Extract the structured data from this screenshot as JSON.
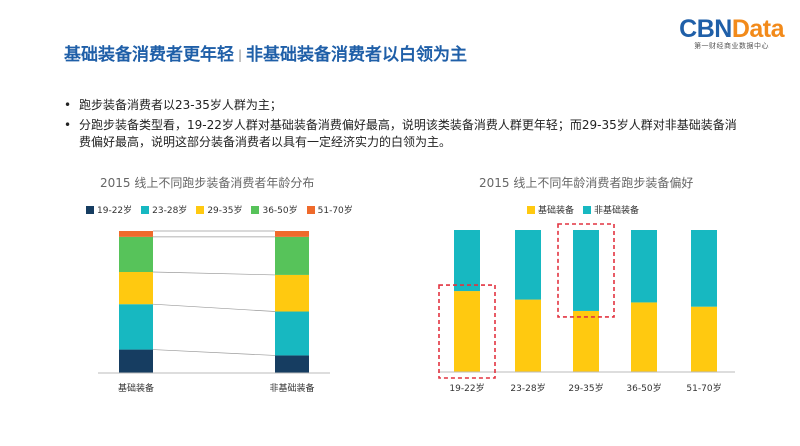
{
  "logo": {
    "main_blue": "CBN",
    "main_orange": "Data",
    "sub": "第一财经商业数据中心"
  },
  "title": {
    "part1": "基础装备消费者更年轻",
    "part2": "非基础装备消费者以白领为主"
  },
  "bullets": [
    "跑步装备消费者以23-35岁人群为主；",
    "分跑步装备类型看，19-22岁人群对基础装备消费偏好最高，说明该类装备消费人群更年轻；而29-35岁人群对非基础装备消费偏好最高，说明这部分装备消费者以具有一定经济实力的白领为主。"
  ],
  "bullet_glyph": "•",
  "colors": {
    "title": "#1f5fa8",
    "age_19_22": "#163d61",
    "age_23_28": "#17b8c1",
    "age_29_35": "#ffc910",
    "age_36_50": "#57c35a",
    "age_51_70": "#ef6a2b",
    "basic": "#ffc910",
    "non_basic": "#17b8c1",
    "highlight": "#e23340"
  },
  "chart_data": [
    {
      "type": "bar",
      "stacked": true,
      "percent_stacked": true,
      "title": "2015 线上不同跑步装备消费者年龄分布",
      "categories": [
        "基础装备",
        "非基础装备"
      ],
      "series": [
        {
          "name": "19-22岁",
          "values": [
            16,
            12
          ]
        },
        {
          "name": "23-28岁",
          "values": [
            31,
            30
          ]
        },
        {
          "name": "29-35岁",
          "values": [
            22,
            25
          ]
        },
        {
          "name": "36-50岁",
          "values": [
            24,
            26
          ]
        },
        {
          "name": "51-70岁",
          "values": [
            4,
            4
          ]
        }
      ],
      "ylim": [
        0,
        100
      ],
      "grid": false,
      "legend_position": "top",
      "connector_lines": true
    },
    {
      "type": "bar",
      "stacked": true,
      "percent_stacked": true,
      "title": "2015 线上不同年龄消费者跑步装备偏好",
      "categories": [
        "19-22岁",
        "23-28岁",
        "29-35岁",
        "36-50岁",
        "51-70岁"
      ],
      "series": [
        {
          "name": "基础装备",
          "values": [
            57,
            51,
            43,
            49,
            46
          ]
        },
        {
          "name": "非基础装备",
          "values": [
            43,
            49,
            57,
            51,
            54
          ]
        }
      ],
      "ylim": [
        0,
        100
      ],
      "grid": false,
      "legend_position": "top",
      "highlighted": [
        {
          "category": "19-22岁",
          "series": "基础装备"
        },
        {
          "category": "29-35岁",
          "series": "非基础装备"
        }
      ]
    }
  ]
}
